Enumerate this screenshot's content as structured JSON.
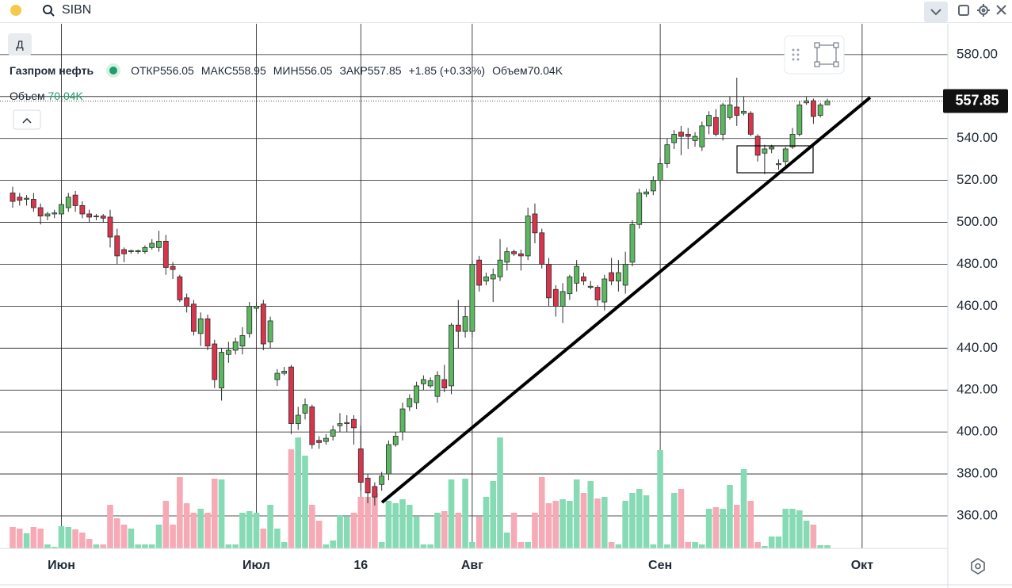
{
  "toolbar": {
    "search": "SIBN",
    "interval": "Д"
  },
  "chart_data": {
    "type": "candlestick",
    "title": "Газпром нефть",
    "ohlc_labels": {
      "open": "ОТКР",
      "high": "МАКС",
      "low": "МИН",
      "close": "ЗАКР"
    },
    "change_label": "+1.85 (+0.33%)",
    "categories": [
      null,
      null,
      null,
      null,
      null,
      null,
      null,
      "Июн",
      null,
      null,
      null,
      null,
      null,
      null,
      null,
      null,
      null,
      null,
      null,
      null,
      null,
      null,
      null,
      null,
      null,
      null,
      null,
      null,
      null,
      null,
      null,
      null,
      null,
      null,
      null,
      "Июл",
      null,
      null,
      null,
      null,
      null,
      null,
      null,
      null,
      null,
      null,
      null,
      null,
      null,
      null,
      "16",
      null,
      null,
      null,
      null,
      null,
      null,
      null,
      null,
      null,
      null,
      null,
      null,
      null,
      null,
      null,
      "Авг",
      null,
      null,
      null,
      null,
      null,
      null,
      null,
      null,
      null,
      null,
      null,
      null,
      null,
      null,
      null,
      null,
      null,
      null,
      null,
      null,
      null,
      null,
      null,
      null,
      null,
      null,
      "Сен",
      null,
      null,
      null,
      null,
      null,
      null,
      null,
      null,
      null,
      null,
      null,
      null,
      null,
      null,
      null,
      null,
      null,
      null,
      null,
      null,
      null,
      null,
      null,
      null,
      null,
      null,
      null,
      null,
      "Окт"
    ],
    "open": [
      514,
      512,
      511,
      511,
      507,
      503,
      504,
      504,
      507,
      513,
      508,
      504,
      503,
      503,
      502.5,
      493.5,
      487,
      486,
      486,
      486,
      488,
      488,
      491,
      479,
      474,
      464,
      461,
      447,
      454,
      442,
      421,
      437,
      439,
      441,
      447,
      459,
      461,
      443,
      425,
      428,
      431,
      404,
      409,
      412,
      396,
      395.5,
      398,
      403,
      404,
      406,
      392,
      378,
      374,
      375,
      380,
      394,
      400,
      412,
      414,
      423,
      422,
      417,
      425,
      422,
      451,
      448,
      448,
      482,
      472,
      473,
      474,
      481,
      486,
      485,
      484,
      504,
      495,
      480,
      468,
      460,
      466,
      471,
      474,
      469,
      469,
      462,
      476,
      472,
      470,
      481,
      499,
      513.5,
      515,
      520,
      528,
      538,
      543,
      542,
      539,
      536,
      546,
      550,
      542,
      550,
      555,
      552,
      552,
      541,
      533,
      535,
      527.5,
      529,
      536,
      542,
      557,
      558,
      551,
      556.05,
      null,
      null,
      null,
      null,
      null
    ],
    "high": [
      517,
      514,
      513,
      514,
      509,
      505,
      506,
      511,
      514,
      515,
      510,
      506,
      504,
      504,
      506,
      497,
      488,
      487,
      487,
      489,
      492,
      496,
      494,
      481,
      475,
      466,
      463,
      457,
      456,
      444,
      440,
      443,
      445,
      450,
      462,
      462,
      463,
      455,
      430,
      431,
      432,
      412,
      416,
      413,
      398,
      399,
      403,
      409,
      408,
      408,
      403,
      380,
      376,
      381,
      396,
      400,
      414,
      418,
      424,
      427,
      426,
      429,
      432,
      452,
      463,
      460,
      482,
      484,
      476,
      478,
      492,
      488,
      487,
      487,
      507,
      509,
      497,
      483,
      470,
      471,
      475,
      482,
      476,
      472,
      470,
      475,
      483,
      482,
      486,
      501,
      516,
      516,
      522,
      531,
      540,
      544,
      546,
      545,
      543,
      548,
      553,
      554,
      557,
      560,
      569,
      560,
      553,
      542,
      537,
      537,
      530,
      536,
      545,
      558,
      560,
      559,
      557,
      558.95,
      null,
      null,
      null,
      null,
      null
    ],
    "low": [
      507,
      508,
      508,
      505,
      499,
      501,
      502,
      502,
      505,
      505,
      502,
      500,
      501,
      500,
      488,
      480,
      481,
      485,
      485,
      485,
      487,
      486,
      475,
      473,
      462,
      457,
      446,
      441,
      439,
      421,
      415,
      433,
      437,
      437,
      445,
      457,
      439,
      440,
      422,
      427,
      399,
      401,
      406,
      392,
      392,
      394,
      396,
      400,
      400,
      394,
      372,
      366,
      365,
      372,
      377,
      393,
      396,
      410,
      411,
      420,
      421,
      414,
      419,
      418,
      440,
      445,
      445,
      467,
      470,
      462,
      472,
      477,
      484,
      477,
      482,
      490,
      478,
      460,
      455,
      452,
      463,
      467,
      470,
      468,
      460,
      458,
      470,
      467,
      466,
      479,
      497,
      512,
      513,
      518,
      526,
      535,
      532,
      535,
      536,
      534,
      542,
      541,
      539,
      549,
      546,
      551,
      541,
      529,
      523,
      533,
      525,
      527,
      535,
      541,
      556,
      547,
      550,
      556.05,
      null,
      null,
      null,
      null,
      null
    ],
    "close": [
      510,
      510.5,
      511.5,
      507,
      503,
      504,
      504.5,
      508.5,
      512,
      508,
      504,
      502.5,
      503,
      502,
      493,
      484,
      485,
      486.5,
      486.5,
      488,
      490,
      491,
      478.5,
      477.5,
      463,
      460,
      448,
      454,
      441,
      425,
      438,
      439,
      443,
      446,
      460,
      460,
      442,
      453,
      428,
      429,
      404,
      408,
      413,
      394,
      395,
      397,
      401,
      404,
      404.5,
      402,
      376,
      371,
      369,
      379,
      394,
      398,
      411,
      416,
      422,
      425,
      424.5,
      427,
      421,
      451,
      448,
      455,
      480,
      470,
      474,
      475,
      482,
      486,
      485,
      484,
      503,
      495,
      480,
      464,
      460,
      467,
      474,
      479,
      472,
      469.5,
      463,
      473,
      472,
      476,
      480,
      499,
      514,
      514.5,
      520,
      528,
      537,
      542,
      541,
      541,
      541,
      546,
      551,
      542,
      556,
      556,
      551,
      553,
      542,
      532,
      535,
      536,
      528,
      535,
      542,
      556,
      558,
      550.5,
      556,
      557.85,
      null,
      null,
      null,
      null,
      null
    ],
    "up_color": "#5cb860",
    "down_color": "#d8344c",
    "volume": {
      "name": "Объем",
      "values": [
        472500,
        437500,
        332500,
        472500,
        437500,
        87500,
        35000,
        490000,
        472500,
        420000,
        350000,
        210000,
        87500,
        87500,
        962500,
        665000,
        525000,
        437500,
        87500,
        87500,
        87500,
        525000,
        1050000,
        525000,
        1575000,
        997500,
        787500,
        875000,
        787500,
        1540000,
        1522500,
        87500,
        87500,
        787500,
        822500,
        787500,
        437500,
        962500,
        437500,
        140000,
        2187500,
        2450000,
        2047500,
        962500,
        612500,
        87500,
        175000,
        735000,
        700000,
        787500,
        1137500,
        1137500,
        1225000,
        140000,
        1050000,
        997500,
        1085000,
        962500,
        700000,
        87500,
        87500,
        787500,
        822500,
        1522500,
        787500,
        1540000,
        140000,
        700000,
        1137500,
        1487500,
        2450000,
        350000,
        787500,
        140000,
        140000,
        787500,
        1575000,
        997500,
        1050000,
        1085000,
        1050000,
        1522500,
        1225000,
        1487500,
        1102500,
        1137500,
        140000,
        87500,
        1050000,
        1225000,
        1312500,
        1172500,
        87500,
        2170000,
        87500,
        1225000,
        1312500,
        140000,
        140000,
        87500,
        875000,
        910000,
        875000,
        1400000,
        962500,
        1750000,
        1050000,
        140000,
        52500,
        262500,
        262500,
        875000,
        875000,
        840000,
        612500,
        525000,
        70000,
        70040,
        null,
        null,
        null,
        null,
        null
      ],
      "value_labels": [
        null,
        null,
        null,
        null,
        null,
        null,
        null,
        null,
        null,
        null,
        null,
        null,
        null,
        null,
        null,
        null,
        null,
        null,
        null,
        null,
        null,
        null,
        null,
        null,
        null,
        null,
        null,
        null,
        null,
        null,
        null,
        null,
        null,
        null,
        null,
        null,
        null,
        null,
        null,
        null,
        null,
        null,
        null,
        null,
        null,
        null,
        null,
        null,
        null,
        null,
        null,
        null,
        null,
        null,
        null,
        null,
        null,
        null,
        null,
        null,
        null,
        null,
        null,
        null,
        null,
        null,
        null,
        null,
        null,
        null,
        null,
        null,
        null,
        null,
        null,
        null,
        null,
        null,
        null,
        null,
        null,
        null,
        null,
        null,
        null,
        null,
        null,
        null,
        null,
        null,
        null,
        null,
        null,
        null,
        null,
        null,
        null,
        null,
        null,
        null,
        null,
        null,
        null,
        null,
        null,
        null,
        null,
        null,
        null,
        null,
        null,
        null,
        null,
        null,
        null,
        null,
        null,
        "70.04K",
        null,
        null,
        null,
        null,
        null
      ],
      "up_color": "#86dbb5",
      "down_color": "#f6aab6"
    },
    "ylim": [
      344.5,
      594.7
    ],
    "yticks": [
      {
        "value": 360,
        "label": "360.00"
      },
      {
        "value": 380,
        "label": "380.00"
      },
      {
        "value": 400,
        "label": "400.00"
      },
      {
        "value": 420,
        "label": "420.00"
      },
      {
        "value": 440,
        "label": "440.00"
      },
      {
        "value": 460,
        "label": "460.00"
      },
      {
        "value": 480,
        "label": "480.00"
      },
      {
        "value": 500,
        "label": "500.00"
      },
      {
        "value": 520,
        "label": "520.00"
      },
      {
        "value": 540,
        "label": "540.00"
      },
      {
        "value": 560,
        "label": "560.00"
      },
      {
        "value": 580,
        "label": "580.00"
      }
    ],
    "y2lim": [
      0,
      3500000
    ],
    "grid": true
  }
}
